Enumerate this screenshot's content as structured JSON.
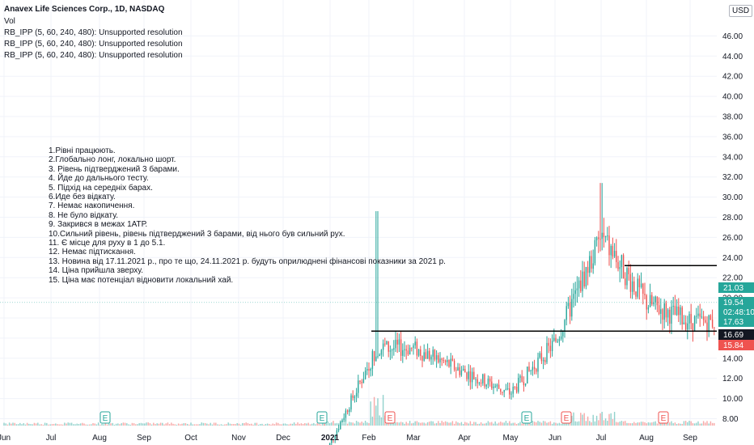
{
  "header": {
    "title": "Anavex Life Sciences Corp., 1D, NASDAQ",
    "lines": [
      "Vol",
      "RB_IPP (5, 60, 240, 480): Unsupported resolution",
      "RB_IPP (5, 60, 240, 480): Unsupported resolution",
      "RB_IPP (5, 60, 240, 480): Unsupported resolution"
    ]
  },
  "currency_label": "USD",
  "notes": [
    "1.Рівні працюють.",
    "2.Глобально лонг, локально шорт.",
    "3. Рівень підтверджений 3 барами.",
    "4. Йде до дальнього тесту.",
    "5. Підхід на середніх барах.",
    "6.Иде без відкату.",
    "7. Немає накопичення.",
    "8. Не було відкату.",
    "9. Закрився в межах 1АТР.",
    "10.Сильний рівень, рівень підтверджений 3 барами, від нього був сильний рух.",
    "11. Є місце для руху в 1 до 5.1.",
    "12. Немає підтискання.",
    "13. Новина від 17.11.2021 р., про те що, 24.11.2021 р. будуть оприлюднені фінансові показники  за 2021 р.",
    "14. Ціна прийшла зверху.",
    "15. Ціна має потенціал відновити локальний хай."
  ],
  "chart_data": {
    "type": "candlestick",
    "symbol": "Anavex Life Sciences Corp., 1D, NASDAQ",
    "y_axis": {
      "ticks": [
        "8.00",
        "10.00",
        "12.00",
        "14.00",
        "16.00",
        "18.00",
        "20.00",
        "22.00",
        "24.00",
        "26.00",
        "28.00",
        "30.00",
        "32.00",
        "34.00",
        "36.00",
        "38.00",
        "40.00",
        "42.00",
        "44.00",
        "46.00"
      ],
      "range": [
        7.0,
        48.0
      ]
    },
    "x_axis": {
      "ticks": [
        "Jun",
        "Jul",
        "Aug",
        "Sep",
        "Oct",
        "Nov",
        "Dec",
        "2021",
        "Feb",
        "Mar",
        "Apr",
        "May",
        "Jun",
        "Jul",
        "Aug",
        "Sep"
      ]
    },
    "price_labels": [
      {
        "text": "21.03",
        "value": 21.03,
        "color": "#26a69a"
      },
      {
        "text": "19.54",
        "value": 19.54,
        "color": "#26a69a"
      },
      {
        "text": "02:48:10",
        "value": 18.6,
        "color": "#26a69a"
      },
      {
        "text": "17.63",
        "value": 17.63,
        "color": "#26a69a"
      },
      {
        "text": "16.69",
        "value": 16.69,
        "color": "#131722"
      },
      {
        "text": "15.84",
        "value": 15.84,
        "color": "#ef5350"
      }
    ],
    "levels": [
      {
        "value": 16.69,
        "from": "Jan 2021",
        "to": "Sep 2021"
      },
      {
        "value": 23.2,
        "from": "Jul 2021",
        "to": "Sep 2021"
      }
    ],
    "earnings_markers": [
      {
        "label": "E",
        "at": "Aug",
        "color": "#26a69a"
      },
      {
        "label": "E",
        "at": "Dec",
        "color": "#26a69a"
      },
      {
        "label": "E",
        "at": "Feb",
        "color": "#ef5350"
      },
      {
        "label": "E",
        "at": "May",
        "color": "#26a69a"
      },
      {
        "label": "E",
        "at": "Jun",
        "color": "#ef5350"
      },
      {
        "label": "E",
        "at": "Aug",
        "color": "#ef5350"
      }
    ],
    "key_points": [
      {
        "date": "Jan 2021",
        "close": 4.4
      },
      {
        "date": "Feb 2021",
        "high": 28.6,
        "close": 15.0
      },
      {
        "date": "Mar 2021",
        "close": 15.0
      },
      {
        "date": "May 2021",
        "close": 10.5
      },
      {
        "date": "Jun 2021",
        "close": 15.6
      },
      {
        "date": "Jul 2021",
        "high": 31.4,
        "close": 26.0
      },
      {
        "date": "Aug 2021",
        "close": 19.5
      },
      {
        "date": "Sep 2021",
        "close": 17.63
      }
    ]
  }
}
